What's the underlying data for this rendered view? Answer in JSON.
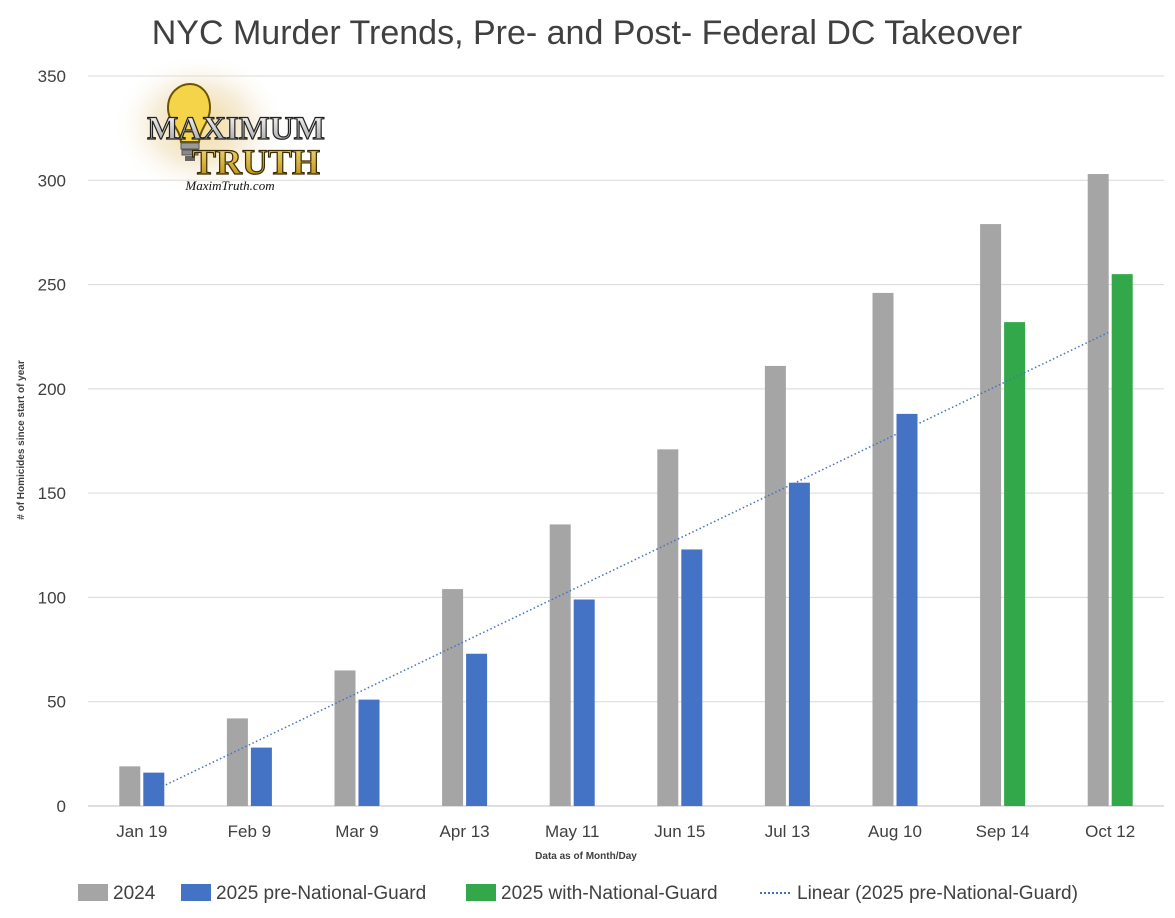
{
  "chart_data": {
    "type": "bar",
    "title": "NYC Murder Trends, Pre- and Post- Federal DC Takeover",
    "xlabel": "Data as of Month/Day",
    "ylabel": "# of Homicides since start of year",
    "ylim": [
      0,
      350
    ],
    "yticks": [
      0,
      50,
      100,
      150,
      200,
      250,
      300,
      350
    ],
    "grid": true,
    "legend_position": "bottom",
    "categories": [
      "Jan 19",
      "Feb 9",
      "Mar 9",
      "Apr 13",
      "May 11",
      "Jun 15",
      "Jul 13",
      "Aug 10",
      "Sep 14",
      "Oct 12"
    ],
    "series": [
      {
        "name": "2024",
        "color": "#a5a5a5",
        "values": [
          19,
          42,
          65,
          104,
          135,
          171,
          211,
          246,
          279,
          303
        ]
      },
      {
        "name": "2025 pre-National-Guard",
        "color": "#4472c4",
        "values": [
          16,
          28,
          51,
          73,
          99,
          123,
          155,
          188,
          null,
          null
        ]
      },
      {
        "name": "2025 with-National-Guard",
        "color": "#33a84b",
        "values": [
          null,
          null,
          null,
          null,
          null,
          null,
          null,
          null,
          232,
          255
        ]
      }
    ],
    "trendline": {
      "name": "Linear (2025 pre-National-Guard)",
      "type": "linear",
      "color": "#4472c4",
      "style": "dotted",
      "start": {
        "category": "Jan 19",
        "value": 6
      },
      "end": {
        "category": "Oct 12",
        "value": 227
      }
    }
  },
  "watermark": {
    "logo_line1": "MAXIMUM",
    "logo_line2": "TRUTH",
    "url": "MaximTruth.com"
  }
}
